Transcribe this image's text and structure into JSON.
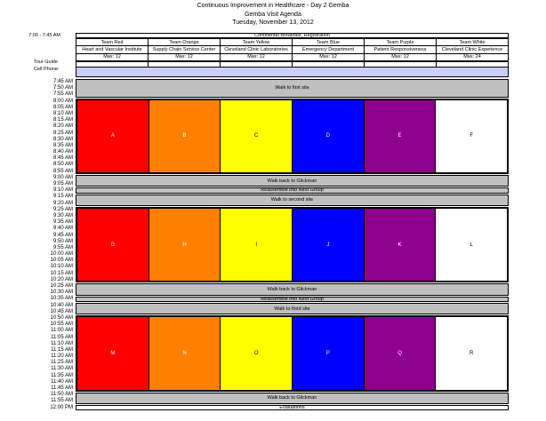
{
  "title": {
    "line1": "Continuous Improvement in Healthcare - Day 2 Gemba",
    "line2": "Gemba Visit Agenda",
    "line3": "Tuesday, November 13, 2012"
  },
  "header": {
    "time_label": "7:00 - 7:45 AM",
    "breakfast": "Continental Breakfast, Registration",
    "tour_guide_label": "Tour Guide",
    "cell_phone_label": "Cell Phone:"
  },
  "teams": [
    {
      "name": "Team Red",
      "site": "Heart and Vascular Institute",
      "max": "Max: 12",
      "color": "#FF0000",
      "letter_color": "#FFFFFF"
    },
    {
      "name": "Team Orange",
      "site": "Supply Chain Service Center",
      "max": "Max: 12",
      "color": "#FF8000",
      "letter_color": "#FFFFFF"
    },
    {
      "name": "Team Yellow",
      "site": "Cleveland Clinic Laboratories",
      "max": "Max: 12",
      "color": "#FFFF00",
      "letter_color": "#000000"
    },
    {
      "name": "Team Blue",
      "site": "Emergency Department",
      "max": "Max: 12",
      "color": "#0000FF",
      "letter_color": "#FFFFFF"
    },
    {
      "name": "Team Purple",
      "site": "Patient Responsiveness",
      "max": "Max: 12",
      "color": "#8E008E",
      "letter_color": "#FFFFFF"
    },
    {
      "name": "Team White",
      "site": "Cleveland Clinic Experience",
      "max": "Max: 24",
      "color": "#FFFFFF",
      "letter_color": "#000000"
    }
  ],
  "schedule": {
    "times": [
      "7:45 AM",
      "7:50 AM",
      "7:55 AM",
      "8:00 AM",
      "8:05 AM",
      "8:10 AM",
      "8:15 AM",
      "8:20 AM",
      "8:25 AM",
      "8:30 AM",
      "8:35 AM",
      "8:40 AM",
      "8:45 AM",
      "8:50 AM",
      "8:55 AM",
      "9:00 AM",
      "9:05 AM",
      "9:10 AM",
      "9:15 AM",
      "9:20 AM",
      "9:25 AM",
      "9:30 AM",
      "9:35 AM",
      "9:40 AM",
      "9:45 AM",
      "9:50 AM",
      "9:55 AM",
      "10:00 AM",
      "10:05 AM",
      "10:10 AM",
      "10:15 AM",
      "10:20 AM",
      "10:25 AM",
      "10:30 AM",
      "10:35 AM",
      "10:40 AM",
      "10:45 AM",
      "10:50 AM",
      "10:55 AM",
      "11:00 AM",
      "11:05 AM",
      "11:10 AM",
      "11:15 AM",
      "11:20 AM",
      "11:25 AM",
      "11:30 AM",
      "11:35 AM",
      "11:40 AM",
      "11:45 AM",
      "11:50 AM",
      "11:55 AM",
      "12:00 PM"
    ],
    "segments": [
      {
        "type": "walk",
        "label": "Walk to first site",
        "rows": 3
      },
      {
        "type": "blocks",
        "letters": [
          "A",
          "B",
          "C",
          "D",
          "E",
          "F"
        ],
        "rows": 12
      },
      {
        "type": "walk",
        "label": "Walk back to Glickman",
        "rows": 2
      },
      {
        "type": "walk",
        "label": "Reassemble into Next Group",
        "rows": 1
      },
      {
        "type": "walk",
        "label": "Walk to second site",
        "rows": 2
      },
      {
        "type": "blocks",
        "letters": [
          "G",
          "H",
          "I",
          "J",
          "K",
          "L"
        ],
        "rows": 12
      },
      {
        "type": "walk",
        "label": "Walk back to Glickman",
        "rows": 2
      },
      {
        "type": "walk",
        "label": "Reassemble into Next Group",
        "rows": 1
      },
      {
        "type": "walk",
        "label": "Walk to third site",
        "rows": 2
      },
      {
        "type": "blocks",
        "letters": [
          "M",
          "N",
          "O",
          "P",
          "Q",
          "R"
        ],
        "rows": 12
      },
      {
        "type": "walk",
        "label": "Walk back to Glickman",
        "rows": 2
      },
      {
        "type": "eval",
        "label": "Evaluations",
        "rows": 1
      }
    ]
  },
  "colors": {
    "walk_band": "#C0C0C0",
    "cell_phone_band": "#CCCCFF",
    "evaluations_band": "#FFFFFF",
    "border": "#000000"
  }
}
